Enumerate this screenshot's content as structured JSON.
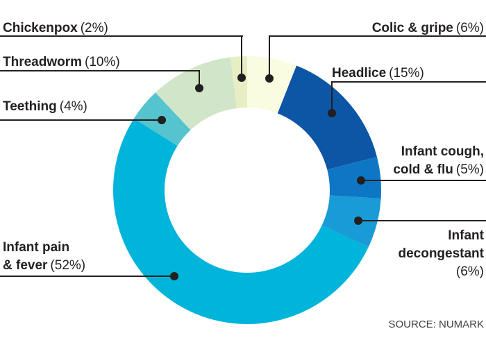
{
  "chart_data": {
    "type": "pie",
    "subtype": "donut",
    "order": "clockwise from 12 o'clock",
    "segments": [
      {
        "label": "Colic & gripe",
        "value": 6,
        "color": "#fafce1"
      },
      {
        "label": "Headlice",
        "value": 15,
        "color": "#0d55a5"
      },
      {
        "label": "Infant cough, cold & flu",
        "value": 5,
        "color": "#0e77c5"
      },
      {
        "label": "Infant decongestant",
        "value": 6,
        "color": "#189bd7"
      },
      {
        "label": "Infant pain & fever",
        "value": 52,
        "color": "#00b4da"
      },
      {
        "label": "Teething",
        "value": 4,
        "color": "#55c4ce"
      },
      {
        "label": "Threadworm",
        "value": 10,
        "color": "#d1e6c9"
      },
      {
        "label": "Chickenpox",
        "value": 2,
        "color": "#e8eec4"
      }
    ],
    "source": "SOURCE: NUMARK"
  },
  "callouts": {
    "chickenpox": {
      "name1": "Chickenpox",
      "pct": "(2%)"
    },
    "threadworm": {
      "name1": "Threadworm",
      "pct": "(10%)"
    },
    "teething": {
      "name1": "Teething",
      "pct": "(4%)"
    },
    "pain": {
      "name1": "Infant pain",
      "name2": "& fever",
      "pct": "(52%)"
    },
    "colic": {
      "name1": "Colic & gripe",
      "pct": "(6%)"
    },
    "headlice": {
      "name1": "Headlice",
      "pct": "(15%)"
    },
    "cough": {
      "name1": "Infant cough,",
      "name2": "cold & flu",
      "pct": "(5%)"
    },
    "decongestant": {
      "name1": "Infant",
      "name2": "decongestant",
      "pct": "(6%)"
    }
  },
  "source": {
    "text": "SOURCE: NUMARK"
  }
}
